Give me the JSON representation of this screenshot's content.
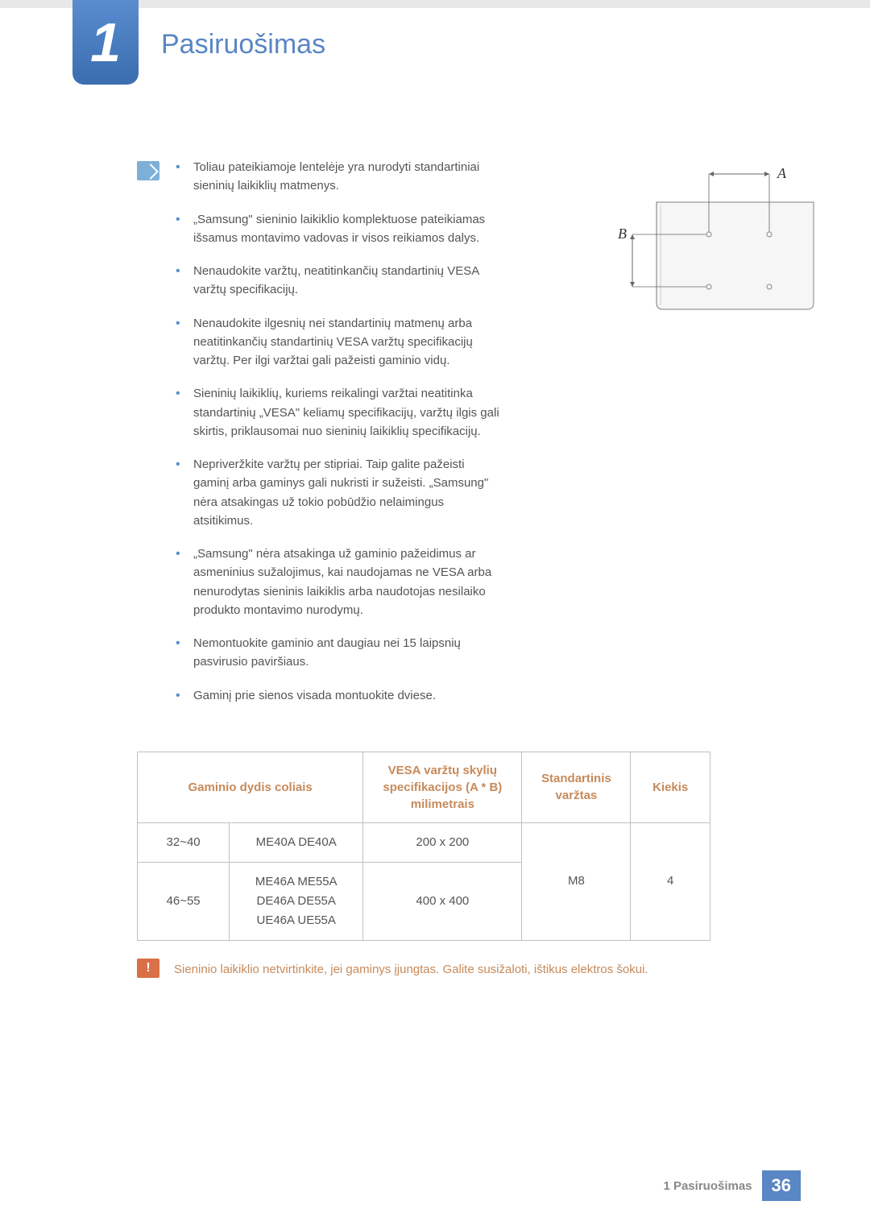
{
  "chapter": {
    "number": "1",
    "title": "Pasiruošimas"
  },
  "bullets": [
    "Toliau pateikiamoje lentelėje yra nurodyti standartiniai sieninių laikiklių matmenys.",
    "„Samsung\" sieninio laikiklio komplektuose pateikiamas išsamus montavimo vadovas ir visos reikiamos dalys.",
    "Nenaudokite varžtų, neatitinkančių standartinių VESA varžtų specifikacijų.",
    "Nenaudokite ilgesnių nei standartinių matmenų arba neatitinkančių standartinių VESA varžtų specifikacijų varžtų. Per ilgi varžtai gali pažeisti gaminio vidų.",
    "Sieninių laikiklių, kuriems reikalingi varžtai neatitinka standartinių „VESA\" keliamų specifikacijų, varžtų ilgis gali skirtis, priklausomai nuo sieninių laikiklių specifikacijų.",
    "Nepriveržkite varžtų per stipriai. Taip galite pažeisti gaminį arba gaminys gali nukristi ir sužeisti. „Samsung\" nėra atsakingas už tokio pobūdžio nelaimingus atsitikimus.",
    "„Samsung\" nėra atsakinga už gaminio pažeidimus ar asmeninius sužalojimus, kai naudojamas ne VESA arba nenurodytas sieninis laikiklis arba naudotojas nesilaiko produkto montavimo nurodymų.",
    "Nemontuokite gaminio ant daugiau nei 15 laipsnių pasvirusio paviršiaus.",
    "Gaminį prie sienos visada montuokite dviese."
  ],
  "diagram": {
    "label_a": "A",
    "label_b": "B",
    "stroke": "#888888",
    "fill": "#f4f4f4"
  },
  "table": {
    "headers": {
      "size": "Gaminio dydis coliais",
      "vesa": "VESA varžtų skylių specifikacijos (A * B) milimetrais",
      "screw": "Standartinis varžtas",
      "qty": "Kiekis"
    },
    "rows": [
      {
        "size": "32~40",
        "model": "ME40A DE40A",
        "vesa": "200 x 200"
      },
      {
        "size": "46~55",
        "model": "ME46A ME55A\nDE46A DE55A\nUE46A UE55A",
        "vesa": "400 x 400"
      }
    ],
    "screw": "M8",
    "qty": "4"
  },
  "warning": "Sieninio laikiklio netvirtinkite, jei gaminys įjungtas. Galite susižaloti, ištikus elektros šokui.",
  "footer": {
    "text": "1 Pasiruošimas",
    "page": "36"
  },
  "colors": {
    "accent_blue": "#5986c4",
    "accent_orange": "#c78a5a",
    "warn_bg": "#d97048"
  }
}
